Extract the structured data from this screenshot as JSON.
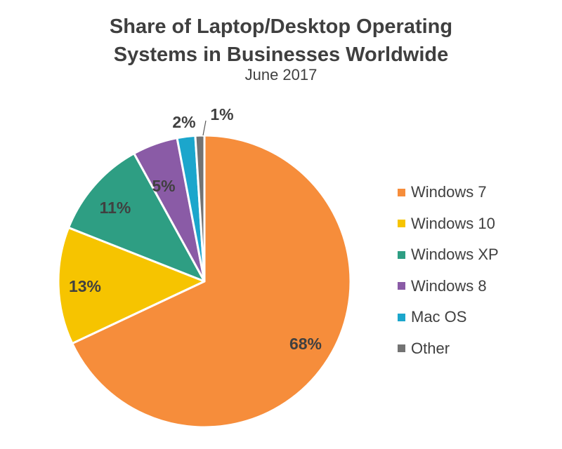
{
  "chart_data": {
    "type": "pie",
    "title": "Share of Laptop/Desktop Operating Systems in Businesses Worldwide",
    "title_lines": [
      "Share of Laptop/Desktop Operating",
      "Systems in Businesses Worldwide"
    ],
    "subtitle": "June 2017",
    "legend_position": "right",
    "slices": [
      {
        "label": "Windows 7",
        "value": 68,
        "value_label": "68%",
        "color": "#F68D3B"
      },
      {
        "label": "Windows 10",
        "value": 13,
        "value_label": "13%",
        "color": "#F6C400"
      },
      {
        "label": "Windows XP",
        "value": 11,
        "value_label": "11%",
        "color": "#2E9E83"
      },
      {
        "label": "Windows 8",
        "value": 5,
        "value_label": "5%",
        "color": "#8A5BA6"
      },
      {
        "label": "Mac OS",
        "value": 2,
        "value_label": "2%",
        "color": "#1BA6CC"
      },
      {
        "label": "Other",
        "value": 1,
        "value_label": "1%",
        "color": "#737373"
      }
    ]
  }
}
